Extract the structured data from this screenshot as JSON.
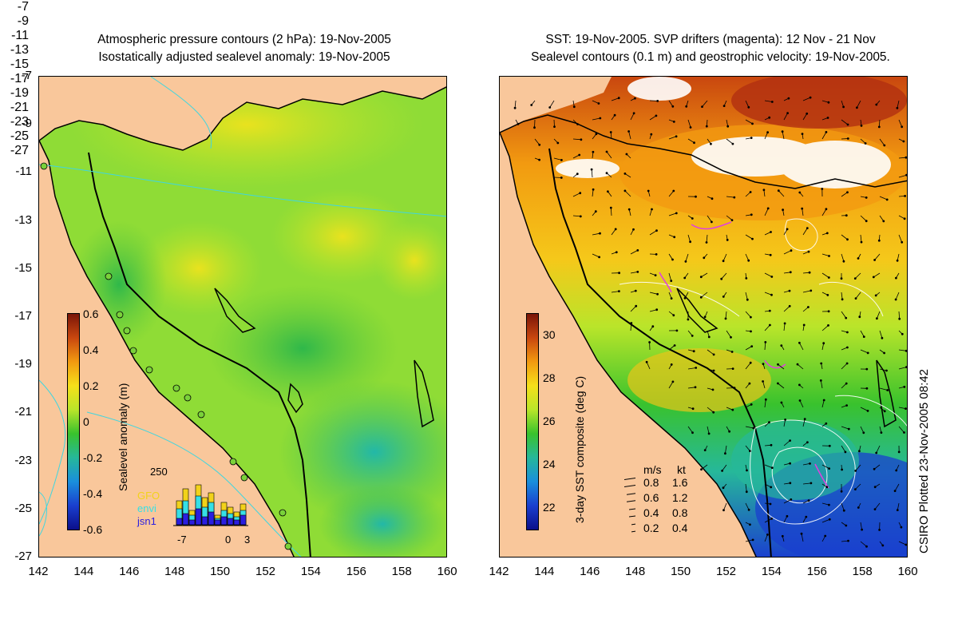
{
  "left_panel": {
    "title_line1": "Atmospheric pressure contours (2 hPa): 19-Nov-2005",
    "title_line2": "Isostatically adjusted sealevel anomaly: 19-Nov-2005",
    "colorbar": {
      "label": "Sealevel anomaly (m)",
      "ticks": [
        "0.6",
        "0.4",
        "0.2",
        "0",
        "-0.2",
        "-0.4",
        "-0.6"
      ],
      "colors": [
        "#7a1508",
        "#c9470f",
        "#f29a10",
        "#f5e01a",
        "#b9e52a",
        "#39c22d",
        "#26b89a",
        "#1a8fdc",
        "#1a3fcf",
        "#0b0f8a"
      ]
    },
    "inset": {
      "ymax_label": "250",
      "series": [
        "GFO",
        "envi",
        "jsn1"
      ],
      "series_colors": [
        "#f2d21a",
        "#36e0e6",
        "#2a1ee0"
      ],
      "x_ticks": [
        "-7",
        "0",
        "3"
      ]
    }
  },
  "right_panel": {
    "title_line1": "SST: 19-Nov-2005. SVP drifters (magenta): 12 Nov - 21 Nov",
    "title_line2": "Sealevel contours (0.1 m) and geostrophic velocity: 19-Nov-2005.",
    "colorbar": {
      "label": "3-day SST composite (deg C)",
      "ticks": [
        "30",
        "28",
        "26",
        "24",
        "22"
      ],
      "colors": [
        "#7a1508",
        "#c9470f",
        "#f29a10",
        "#f5e01a",
        "#b9e52a",
        "#39c22d",
        "#26b89a",
        "#1a8fdc",
        "#1a3fcf",
        "#0b0f8a"
      ]
    },
    "velocity_legend": {
      "header_ms": "m/s",
      "header_kt": "kt",
      "rows": [
        {
          "ms": "0.8",
          "kt": "1.6"
        },
        {
          "ms": "0.6",
          "kt": "1.2"
        },
        {
          "ms": "0.4",
          "kt": "0.8"
        },
        {
          "ms": "0.2",
          "kt": "0.4"
        }
      ]
    },
    "side_note": "CSIRO Plotted 23-Nov-2005 08:42"
  },
  "axes": {
    "lat_labels": [
      "-7",
      "-9",
      "-11",
      "-13",
      "-15",
      "-17",
      "-19",
      "-21",
      "-23",
      "-25",
      "-27"
    ],
    "lon_labels": [
      "142",
      "144",
      "146",
      "148",
      "150",
      "152",
      "154",
      "156",
      "158",
      "160"
    ]
  },
  "colors": {
    "land": "#f9c79b",
    "coast": "#000000",
    "contour_left": "#3fd6e0",
    "contour_right": "#ffffff",
    "drifter": "#e040e0",
    "cloud": "#ffffff"
  }
}
